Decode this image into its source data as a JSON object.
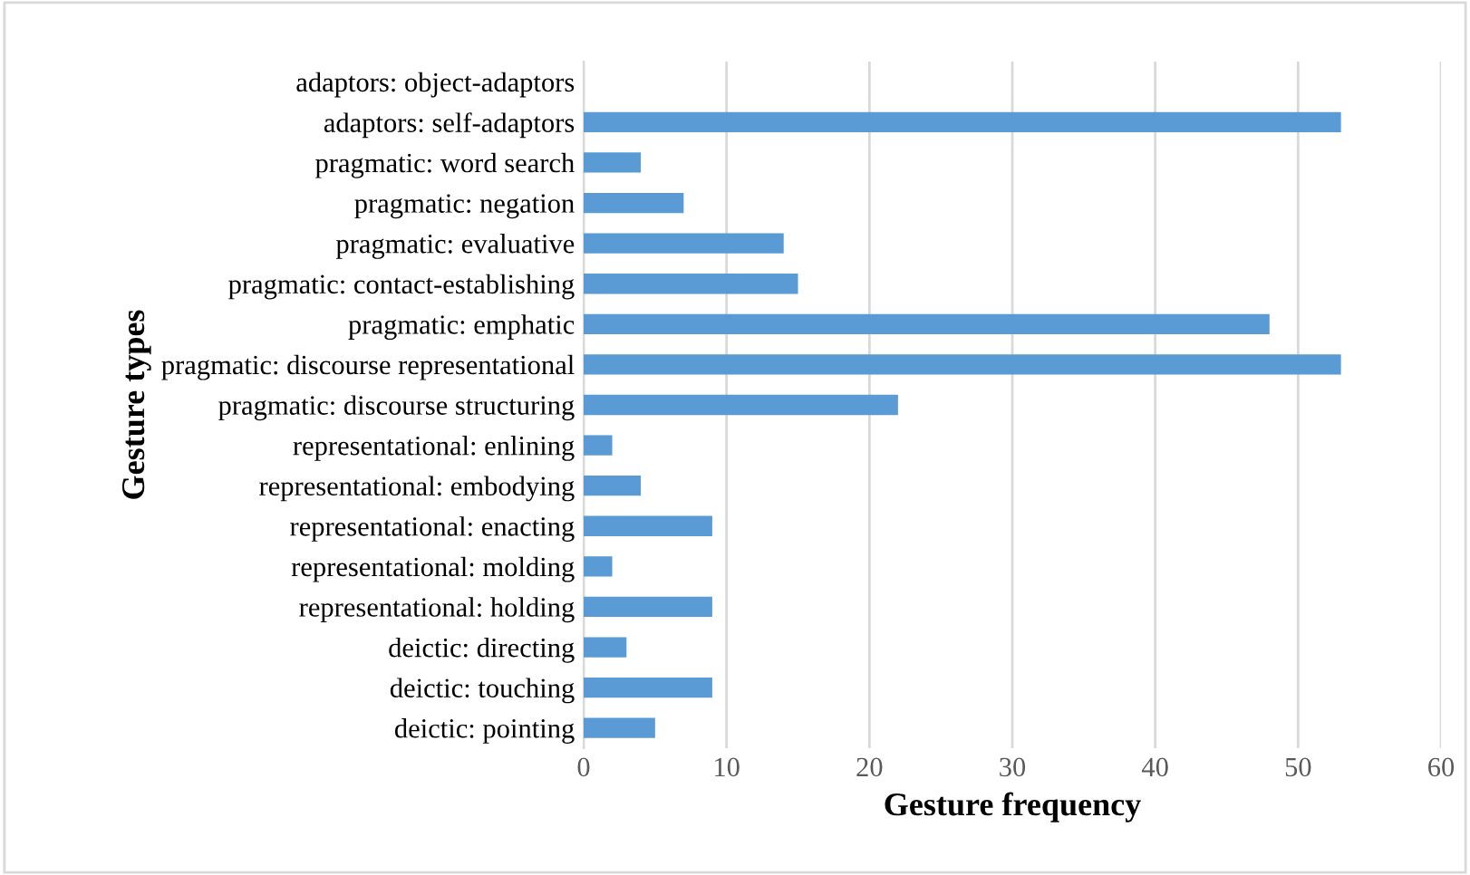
{
  "chart_data": {
    "type": "bar",
    "orientation": "horizontal",
    "xlabel": "Gesture frequency",
    "ylabel": "Gesture types",
    "categories": [
      "adaptors: object-adaptors",
      "adaptors: self-adaptors",
      "pragmatic: word search",
      "pragmatic: negation",
      "pragmatic: evaluative",
      "pragmatic: contact-establishing",
      "pragmatic: emphatic",
      "pragmatic: discourse representational",
      "pragmatic: discourse structuring",
      "representational: enlining",
      "representational: embodying",
      "representational: enacting",
      "representational: molding",
      "representational: holding",
      "deictic: directing",
      "deictic: touching",
      "deictic: pointing"
    ],
    "values": [
      0,
      53,
      4,
      7,
      14,
      15,
      48,
      53,
      22,
      2,
      4,
      9,
      2,
      9,
      3,
      9,
      5
    ],
    "color": "#5b9bd5",
    "xlim": [
      0,
      60
    ],
    "xticks": [
      0,
      10,
      20,
      30,
      40,
      50,
      60
    ],
    "grid": "x",
    "legend": false
  }
}
